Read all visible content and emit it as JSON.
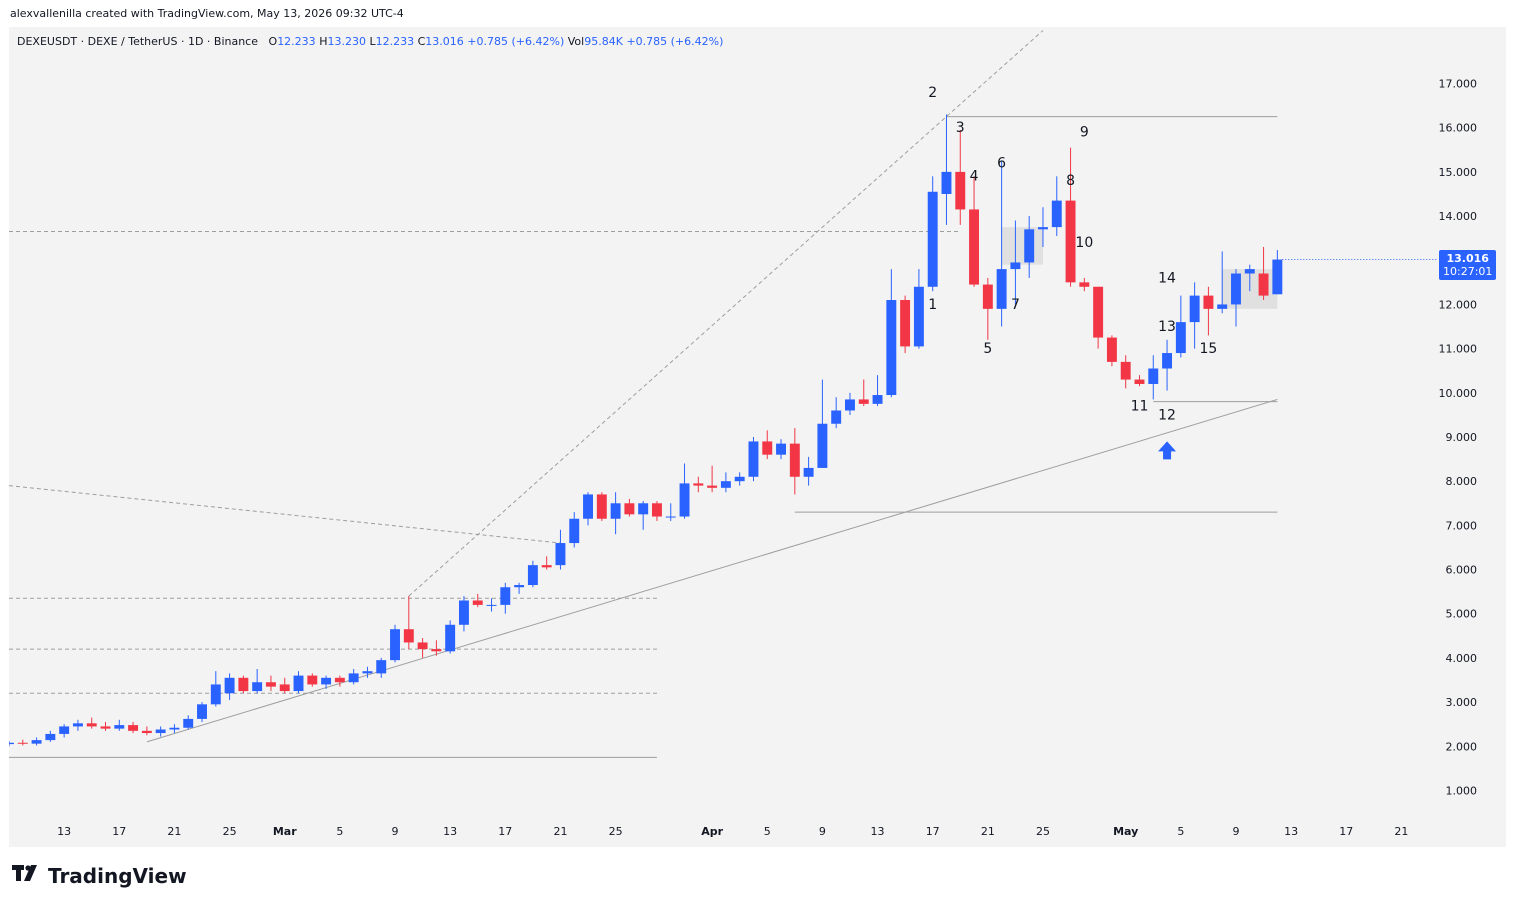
{
  "header": {
    "credit": "alexvallenilla created with TradingView.com, May 13, 2026 09:32 UTC-4"
  },
  "legend": {
    "symbol": "DEXEUSDT · DEXE / TetherUS · 1D · Binance",
    "o_label": "O",
    "o_value": "12.233",
    "h_label": "H",
    "h_value": "13.230",
    "l_label": "L",
    "l_value": "12.233",
    "c_label": "C",
    "c_value": "13.016",
    "change": "+0.785 (+6.42%)",
    "vol_label": "Vol",
    "vol_value": "95.84K",
    "vol_change": "+0.785 (+6.42%)"
  },
  "last_price": {
    "price": "13.016",
    "countdown": "10:27:01"
  },
  "brand": {
    "name": "TradingView"
  },
  "colors": {
    "up": "#2962ff",
    "down": "#f23645",
    "bg": "#f3f3f3",
    "line": "#9e9e9e"
  },
  "chart_data": {
    "type": "candlestick",
    "y_ticks": [
      "17.000",
      "16.000",
      "15.000",
      "14.000",
      "13.000",
      "12.000",
      "11.000",
      "10.000",
      "9.000",
      "8.000",
      "7.000",
      "6.000",
      "5.000",
      "4.000",
      "3.000",
      "2.000",
      "1.000"
    ],
    "ylim": [
      0.4,
      17.6
    ],
    "x_ticks": [
      {
        "label": "13",
        "date": "2026-02-13"
      },
      {
        "label": "17",
        "date": "2026-02-17"
      },
      {
        "label": "21",
        "date": "2026-02-21"
      },
      {
        "label": "25",
        "date": "2026-02-25"
      },
      {
        "label": "Mar",
        "date": "2026-03-01"
      },
      {
        "label": "5",
        "date": "2026-03-05"
      },
      {
        "label": "9",
        "date": "2026-03-09"
      },
      {
        "label": "13",
        "date": "2026-03-13"
      },
      {
        "label": "17",
        "date": "2026-03-17"
      },
      {
        "label": "21",
        "date": "2026-03-21"
      },
      {
        "label": "25",
        "date": "2026-03-25"
      },
      {
        "label": "Apr",
        "date": "2026-04-01"
      },
      {
        "label": "5",
        "date": "2026-04-05"
      },
      {
        "label": "9",
        "date": "2026-04-09"
      },
      {
        "label": "13",
        "date": "2026-04-13"
      },
      {
        "label": "17",
        "date": "2026-04-17"
      },
      {
        "label": "21",
        "date": "2026-04-21"
      },
      {
        "label": "25",
        "date": "2026-04-25"
      },
      {
        "label": "May",
        "date": "2026-05-01"
      },
      {
        "label": "5",
        "date": "2026-05-05"
      },
      {
        "label": "9",
        "date": "2026-05-09"
      },
      {
        "label": "13",
        "date": "2026-05-13"
      },
      {
        "label": "17",
        "date": "2026-05-17"
      },
      {
        "label": "21",
        "date": "2026-05-21"
      }
    ],
    "x_range": [
      "2026-02-09",
      "2026-05-23"
    ],
    "candles": [
      {
        "d": "2026-02-09",
        "o": 2.05,
        "h": 2.12,
        "l": 2.0,
        "c": 2.08
      },
      {
        "d": "2026-02-10",
        "o": 2.08,
        "h": 2.15,
        "l": 2.02,
        "c": 2.06
      },
      {
        "d": "2026-02-11",
        "o": 2.06,
        "h": 2.2,
        "l": 2.02,
        "c": 2.14
      },
      {
        "d": "2026-02-12",
        "o": 2.14,
        "h": 2.35,
        "l": 2.1,
        "c": 2.28
      },
      {
        "d": "2026-02-13",
        "o": 2.28,
        "h": 2.5,
        "l": 2.2,
        "c": 2.45
      },
      {
        "d": "2026-02-14",
        "o": 2.45,
        "h": 2.6,
        "l": 2.35,
        "c": 2.52
      },
      {
        "d": "2026-02-15",
        "o": 2.52,
        "h": 2.65,
        "l": 2.4,
        "c": 2.45
      },
      {
        "d": "2026-02-16",
        "o": 2.45,
        "h": 2.55,
        "l": 2.35,
        "c": 2.4
      },
      {
        "d": "2026-02-17",
        "o": 2.4,
        "h": 2.6,
        "l": 2.35,
        "c": 2.48
      },
      {
        "d": "2026-02-18",
        "o": 2.48,
        "h": 2.55,
        "l": 2.3,
        "c": 2.35
      },
      {
        "d": "2026-02-19",
        "o": 2.35,
        "h": 2.45,
        "l": 2.25,
        "c": 2.3
      },
      {
        "d": "2026-02-20",
        "o": 2.3,
        "h": 2.45,
        "l": 2.22,
        "c": 2.38
      },
      {
        "d": "2026-02-21",
        "o": 2.38,
        "h": 2.5,
        "l": 2.3,
        "c": 2.42
      },
      {
        "d": "2026-02-22",
        "o": 2.42,
        "h": 2.7,
        "l": 2.38,
        "c": 2.62
      },
      {
        "d": "2026-02-23",
        "o": 2.62,
        "h": 3.0,
        "l": 2.55,
        "c": 2.95
      },
      {
        "d": "2026-02-24",
        "o": 2.95,
        "h": 3.7,
        "l": 2.9,
        "c": 3.4
      },
      {
        "d": "2026-02-25",
        "o": 3.2,
        "h": 3.65,
        "l": 3.05,
        "c": 3.55
      },
      {
        "d": "2026-02-26",
        "o": 3.55,
        "h": 3.6,
        "l": 3.2,
        "c": 3.25
      },
      {
        "d": "2026-02-27",
        "o": 3.25,
        "h": 3.75,
        "l": 3.2,
        "c": 3.45
      },
      {
        "d": "2026-02-28",
        "o": 3.45,
        "h": 3.6,
        "l": 3.25,
        "c": 3.35
      },
      {
        "d": "2026-03-01",
        "o": 3.4,
        "h": 3.55,
        "l": 3.2,
        "c": 3.25
      },
      {
        "d": "2026-03-02",
        "o": 3.25,
        "h": 3.7,
        "l": 3.2,
        "c": 3.6
      },
      {
        "d": "2026-03-03",
        "o": 3.6,
        "h": 3.65,
        "l": 3.35,
        "c": 3.4
      },
      {
        "d": "2026-03-04",
        "o": 3.4,
        "h": 3.6,
        "l": 3.3,
        "c": 3.55
      },
      {
        "d": "2026-03-05",
        "o": 3.55,
        "h": 3.6,
        "l": 3.35,
        "c": 3.45
      },
      {
        "d": "2026-03-06",
        "o": 3.45,
        "h": 3.75,
        "l": 3.4,
        "c": 3.65
      },
      {
        "d": "2026-03-07",
        "o": 3.65,
        "h": 3.8,
        "l": 3.55,
        "c": 3.7
      },
      {
        "d": "2026-03-08",
        "o": 3.65,
        "h": 4.0,
        "l": 3.55,
        "c": 3.95
      },
      {
        "d": "2026-03-09",
        "o": 3.95,
        "h": 4.75,
        "l": 3.9,
        "c": 4.65
      },
      {
        "d": "2026-03-10",
        "o": 4.65,
        "h": 5.4,
        "l": 4.2,
        "c": 4.35
      },
      {
        "d": "2026-03-11",
        "o": 4.35,
        "h": 4.45,
        "l": 4.0,
        "c": 4.2
      },
      {
        "d": "2026-03-12",
        "o": 4.2,
        "h": 4.4,
        "l": 4.05,
        "c": 4.15
      },
      {
        "d": "2026-03-13",
        "o": 4.15,
        "h": 4.85,
        "l": 4.1,
        "c": 4.75
      },
      {
        "d": "2026-03-14",
        "o": 4.75,
        "h": 5.4,
        "l": 4.6,
        "c": 5.3
      },
      {
        "d": "2026-03-15",
        "o": 5.3,
        "h": 5.45,
        "l": 5.15,
        "c": 5.2
      },
      {
        "d": "2026-03-16",
        "o": 5.2,
        "h": 5.35,
        "l": 5.05,
        "c": 5.2
      },
      {
        "d": "2026-03-17",
        "o": 5.2,
        "h": 5.7,
        "l": 5.0,
        "c": 5.6
      },
      {
        "d": "2026-03-18",
        "o": 5.6,
        "h": 5.7,
        "l": 5.45,
        "c": 5.65
      },
      {
        "d": "2026-03-19",
        "o": 5.65,
        "h": 6.2,
        "l": 5.6,
        "c": 6.1
      },
      {
        "d": "2026-03-20",
        "o": 6.1,
        "h": 6.3,
        "l": 6.0,
        "c": 6.05
      },
      {
        "d": "2026-03-21",
        "o": 6.1,
        "h": 6.9,
        "l": 6.0,
        "c": 6.6
      },
      {
        "d": "2026-03-22",
        "o": 6.6,
        "h": 7.3,
        "l": 6.5,
        "c": 7.15
      },
      {
        "d": "2026-03-23",
        "o": 7.15,
        "h": 7.75,
        "l": 7.0,
        "c": 7.7
      },
      {
        "d": "2026-03-24",
        "o": 7.7,
        "h": 7.75,
        "l": 7.1,
        "c": 7.15
      },
      {
        "d": "2026-03-25",
        "o": 7.15,
        "h": 7.75,
        "l": 6.8,
        "c": 7.5
      },
      {
        "d": "2026-03-26",
        "o": 7.5,
        "h": 7.6,
        "l": 7.2,
        "c": 7.25
      },
      {
        "d": "2026-03-27",
        "o": 7.25,
        "h": 7.55,
        "l": 6.9,
        "c": 7.5
      },
      {
        "d": "2026-03-28",
        "o": 7.5,
        "h": 7.55,
        "l": 7.1,
        "c": 7.2
      },
      {
        "d": "2026-03-29",
        "o": 7.2,
        "h": 7.5,
        "l": 7.1,
        "c": 7.2
      },
      {
        "d": "2026-03-30",
        "o": 7.2,
        "h": 8.4,
        "l": 7.15,
        "c": 7.95
      },
      {
        "d": "2026-03-31",
        "o": 7.95,
        "h": 8.1,
        "l": 7.75,
        "c": 7.9
      },
      {
        "d": "2026-04-01",
        "o": 7.9,
        "h": 8.35,
        "l": 7.75,
        "c": 7.85
      },
      {
        "d": "2026-04-02",
        "o": 7.85,
        "h": 8.2,
        "l": 7.75,
        "c": 8.0
      },
      {
        "d": "2026-04-03",
        "o": 8.0,
        "h": 8.2,
        "l": 7.9,
        "c": 8.1
      },
      {
        "d": "2026-04-04",
        "o": 8.1,
        "h": 9.0,
        "l": 8.0,
        "c": 8.9
      },
      {
        "d": "2026-04-05",
        "o": 8.9,
        "h": 9.15,
        "l": 8.5,
        "c": 8.6
      },
      {
        "d": "2026-04-06",
        "o": 8.6,
        "h": 8.95,
        "l": 8.5,
        "c": 8.85
      },
      {
        "d": "2026-04-07",
        "o": 8.85,
        "h": 9.2,
        "l": 7.7,
        "c": 8.1
      },
      {
        "d": "2026-04-08",
        "o": 8.1,
        "h": 8.55,
        "l": 7.9,
        "c": 8.3
      },
      {
        "d": "2026-04-09",
        "o": 8.3,
        "h": 10.3,
        "l": 8.3,
        "c": 9.3
      },
      {
        "d": "2026-04-10",
        "o": 9.3,
        "h": 9.9,
        "l": 9.2,
        "c": 9.6
      },
      {
        "d": "2026-04-11",
        "o": 9.6,
        "h": 10.0,
        "l": 9.5,
        "c": 9.85
      },
      {
        "d": "2026-04-12",
        "o": 9.85,
        "h": 10.3,
        "l": 9.7,
        "c": 9.75
      },
      {
        "d": "2026-04-13",
        "o": 9.75,
        "h": 10.4,
        "l": 9.7,
        "c": 9.95
      },
      {
        "d": "2026-04-14",
        "o": 9.95,
        "h": 12.8,
        "l": 9.9,
        "c": 12.1
      },
      {
        "d": "2026-04-15",
        "o": 12.1,
        "h": 12.2,
        "l": 10.9,
        "c": 11.05
      },
      {
        "d": "2026-04-16",
        "o": 11.05,
        "h": 12.8,
        "l": 11.0,
        "c": 12.4
      },
      {
        "d": "2026-04-17",
        "o": 12.4,
        "h": 14.9,
        "l": 12.3,
        "c": 14.55
      },
      {
        "d": "2026-04-18",
        "o": 14.5,
        "h": 16.3,
        "l": 13.8,
        "c": 15.0
      },
      {
        "d": "2026-04-19",
        "o": 15.0,
        "h": 15.95,
        "l": 13.8,
        "c": 14.15
      },
      {
        "d": "2026-04-20",
        "o": 14.15,
        "h": 14.9,
        "l": 12.4,
        "c": 12.45
      },
      {
        "d": "2026-04-21",
        "o": 12.45,
        "h": 12.6,
        "l": 11.2,
        "c": 11.9
      },
      {
        "d": "2026-04-22",
        "o": 11.9,
        "h": 15.25,
        "l": 11.5,
        "c": 12.8
      },
      {
        "d": "2026-04-23",
        "o": 12.8,
        "h": 13.9,
        "l": 12.0,
        "c": 12.95
      },
      {
        "d": "2026-04-24",
        "o": 12.95,
        "h": 14.0,
        "l": 12.6,
        "c": 13.7
      },
      {
        "d": "2026-04-25",
        "o": 13.7,
        "h": 14.2,
        "l": 13.3,
        "c": 13.75
      },
      {
        "d": "2026-04-26",
        "o": 13.75,
        "h": 14.9,
        "l": 13.55,
        "c": 14.35
      },
      {
        "d": "2026-04-27",
        "o": 14.35,
        "h": 15.55,
        "l": 12.4,
        "c": 12.5
      },
      {
        "d": "2026-04-28",
        "o": 12.5,
        "h": 12.6,
        "l": 12.3,
        "c": 12.4
      },
      {
        "d": "2026-04-29",
        "o": 12.4,
        "h": 12.4,
        "l": 11.0,
        "c": 11.25
      },
      {
        "d": "2026-04-30",
        "o": 11.25,
        "h": 11.3,
        "l": 10.6,
        "c": 10.7
      },
      {
        "d": "2026-05-01",
        "o": 10.7,
        "h": 10.85,
        "l": 10.1,
        "c": 10.3
      },
      {
        "d": "2026-05-02",
        "o": 10.3,
        "h": 10.4,
        "l": 10.15,
        "c": 10.2
      },
      {
        "d": "2026-05-03",
        "o": 10.2,
        "h": 10.85,
        "l": 9.85,
        "c": 10.55
      },
      {
        "d": "2026-05-04",
        "o": 10.55,
        "h": 11.2,
        "l": 10.05,
        "c": 10.9
      },
      {
        "d": "2026-05-05",
        "o": 10.9,
        "h": 12.2,
        "l": 10.8,
        "c": 11.6
      },
      {
        "d": "2026-05-06",
        "o": 11.6,
        "h": 12.5,
        "l": 11.0,
        "c": 12.2
      },
      {
        "d": "2026-05-07",
        "o": 12.2,
        "h": 12.4,
        "l": 11.3,
        "c": 11.9
      },
      {
        "d": "2026-05-08",
        "o": 11.9,
        "h": 13.2,
        "l": 11.8,
        "c": 12.0
      },
      {
        "d": "2026-05-09",
        "o": 12.0,
        "h": 12.8,
        "l": 11.5,
        "c": 12.7
      },
      {
        "d": "2026-05-10",
        "o": 12.7,
        "h": 12.9,
        "l": 12.3,
        "c": 12.8
      },
      {
        "d": "2026-05-11",
        "o": 12.7,
        "h": 13.3,
        "l": 12.1,
        "c": 12.2
      },
      {
        "d": "2026-05-12",
        "o": 12.23,
        "h": 13.23,
        "l": 12.23,
        "c": 13.016
      }
    ],
    "wave_labels": [
      {
        "text": "1",
        "d": "2026-04-17",
        "y": 11.9
      },
      {
        "text": "2",
        "d": "2026-04-17",
        "y": 16.7
      },
      {
        "text": "3",
        "d": "2026-04-19",
        "y": 15.9
      },
      {
        "text": "4",
        "d": "2026-04-20",
        "y": 14.8
      },
      {
        "text": "5",
        "d": "2026-04-21",
        "y": 10.9
      },
      {
        "text": "6",
        "d": "2026-04-22",
        "y": 15.1
      },
      {
        "text": "7",
        "d": "2026-04-23",
        "y": 11.9
      },
      {
        "text": "8",
        "d": "2026-04-27",
        "y": 14.7
      },
      {
        "text": "9",
        "d": "2026-04-28",
        "y": 15.8
      },
      {
        "text": "10",
        "d": "2026-04-28",
        "y": 13.3
      },
      {
        "text": "11",
        "d": "2026-05-02",
        "y": 9.6
      },
      {
        "text": "12",
        "d": "2026-05-04",
        "y": 9.4
      },
      {
        "text": "13",
        "d": "2026-05-04",
        "y": 11.4
      },
      {
        "text": "14",
        "d": "2026-05-04",
        "y": 12.5
      },
      {
        "text": "15",
        "d": "2026-05-07",
        "y": 10.9
      }
    ]
  }
}
